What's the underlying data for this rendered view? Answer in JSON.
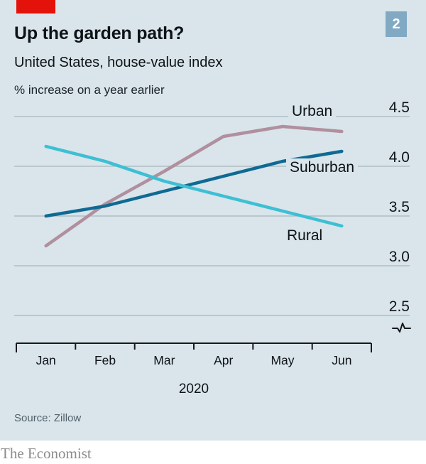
{
  "header": {
    "title": "Up the garden path?",
    "subtitle": "United States, house-value index",
    "unit_note": "% increase on a year earlier",
    "figure_number": "2"
  },
  "chart_data": {
    "type": "line",
    "categories": [
      "Jan",
      "Feb",
      "Mar",
      "Apr",
      "May",
      "Jun"
    ],
    "x_group_label": "2020",
    "series": [
      {
        "name": "Urban",
        "color": "#b08f9f",
        "values": [
          3.2,
          3.62,
          3.95,
          4.3,
          4.4,
          4.35
        ]
      },
      {
        "name": "Suburban",
        "color": "#0f6a93",
        "values": [
          3.5,
          3.6,
          3.75,
          3.9,
          4.05,
          4.15
        ]
      },
      {
        "name": "Rural",
        "color": "#3dbfd4",
        "values": [
          4.2,
          4.05,
          3.85,
          3.7,
          3.55,
          3.4
        ]
      }
    ],
    "y_ticks": [
      4.5,
      4.0,
      3.5,
      3.0,
      2.5
    ],
    "y_tick_labels": [
      "4.5",
      "4.0",
      "3.5",
      "3.0",
      "2.5"
    ],
    "y_range": [
      2.5,
      4.5
    ],
    "axis_break": true,
    "grid": true,
    "legend_position": "inline-right"
  },
  "footer": {
    "source": "Source: Zillow",
    "brand": "The Economist"
  },
  "colors": {
    "background": "#d9e5ea",
    "accent_red": "#e3120b",
    "badge_blue": "#81a9c4",
    "gridline": "#a9b6bd",
    "axis": "#16191c",
    "text": "#0e1317"
  }
}
